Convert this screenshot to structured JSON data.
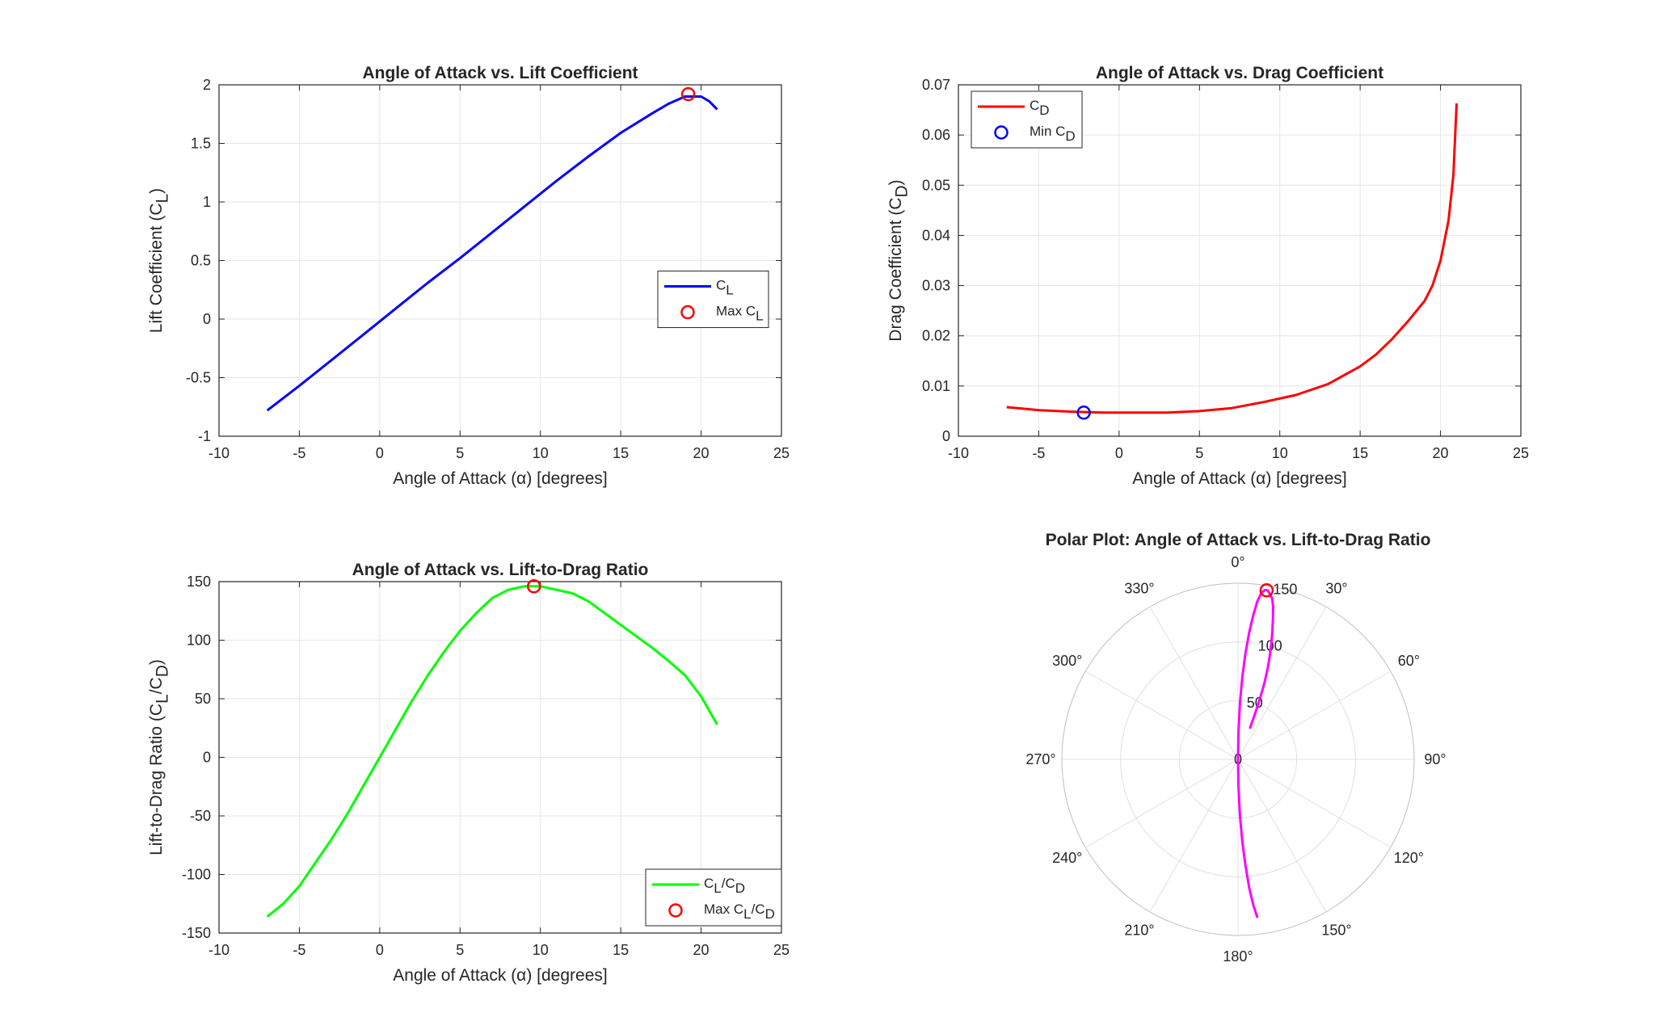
{
  "chart_data": [
    {
      "id": "cl",
      "type": "line",
      "title": "Angle of Attack vs. Lift Coefficient",
      "xlabel": "Angle of Attack (α) [degrees]",
      "ylabel": {
        "base": "Lift Coefficient (C",
        "sub": "L",
        "tail": ")"
      },
      "xlim": [
        -10,
        25
      ],
      "ylim": [
        -1,
        2
      ],
      "xticks": [
        "-10",
        "-5",
        "0",
        "5",
        "10",
        "15",
        "20",
        "25"
      ],
      "yticks": [
        "-1",
        "-0.5",
        "0",
        "0.5",
        "1",
        "1.5",
        "2"
      ],
      "grid": true,
      "legend_position": "center-right",
      "series": [
        {
          "name": {
            "base": "C",
            "sub": "L",
            "tail": ""
          },
          "color": "#0000ff",
          "x": [
            -7,
            -5,
            -3,
            -1,
            1,
            3,
            5,
            7,
            9,
            11,
            13,
            15,
            17,
            18,
            19,
            20,
            20.5,
            21
          ],
          "y": [
            -0.78,
            -0.57,
            -0.35,
            -0.13,
            0.09,
            0.31,
            0.52,
            0.74,
            0.96,
            1.18,
            1.39,
            1.59,
            1.76,
            1.84,
            1.9,
            1.9,
            1.86,
            1.79
          ]
        }
      ],
      "markers": [
        {
          "name": {
            "base": "Max C",
            "sub": "L",
            "tail": ""
          },
          "color": "#ff0000",
          "x": 19.2,
          "y": 1.92
        }
      ]
    },
    {
      "id": "cd",
      "type": "line",
      "title": "Angle of Attack vs. Drag Coefficient",
      "xlabel": "Angle of Attack (α) [degrees]",
      "ylabel": {
        "base": "Drag Coefficient (C",
        "sub": "D",
        "tail": ")"
      },
      "xlim": [
        -10,
        25
      ],
      "ylim": [
        0,
        0.07
      ],
      "xticks": [
        "-10",
        "-5",
        "0",
        "5",
        "10",
        "15",
        "20",
        "25"
      ],
      "yticks": [
        "0",
        "0.01",
        "0.02",
        "0.03",
        "0.04",
        "0.05",
        "0.06",
        "0.07"
      ],
      "grid": true,
      "legend_position": "top-left",
      "series": [
        {
          "name": {
            "base": "C",
            "sub": "D",
            "tail": ""
          },
          "color": "#ff0000",
          "x": [
            -7,
            -5,
            -3,
            -1,
            1,
            2,
            3,
            5,
            7,
            9,
            11,
            13,
            15,
            16,
            17,
            18,
            19,
            19.5,
            20,
            20.5,
            20.8,
            21
          ],
          "y": [
            0.0058,
            0.0052,
            0.0049,
            0.0047,
            0.0047,
            0.0047,
            0.0047,
            0.005,
            0.0056,
            0.0068,
            0.0082,
            0.0104,
            0.0139,
            0.0163,
            0.0194,
            0.023,
            0.0269,
            0.03,
            0.035,
            0.043,
            0.052,
            0.0663
          ]
        }
      ],
      "markers": [
        {
          "name": {
            "base": "Min C",
            "sub": "D",
            "tail": ""
          },
          "color": "#0000ff",
          "x": -2.2,
          "y": 0.0047
        }
      ]
    },
    {
      "id": "ld",
      "type": "line",
      "title": "Angle of Attack vs. Lift-to-Drag Ratio",
      "xlabel": "Angle of Attack (α) [degrees]",
      "ylabel": {
        "base": "Lift-to-Drag Ratio (C",
        "sub": "L",
        "mid": "/C",
        "sub2": "D",
        "tail": ")"
      },
      "xlim": [
        -10,
        25
      ],
      "ylim": [
        -150,
        150
      ],
      "xticks": [
        "-10",
        "-5",
        "0",
        "5",
        "10",
        "15",
        "20",
        "25"
      ],
      "yticks": [
        "-150",
        "-100",
        "-50",
        "0",
        "50",
        "100",
        "150"
      ],
      "grid": true,
      "legend_position": "bottom-right",
      "series": [
        {
          "name": {
            "base": "C",
            "sub": "L",
            "mid": "/C",
            "sub2": "D",
            "tail": ""
          },
          "color": "#00ff00",
          "x": [
            -7,
            -6,
            -5,
            -4,
            -3,
            -2,
            -1,
            0,
            1,
            2,
            3,
            4,
            5,
            6,
            7,
            8,
            9,
            10,
            11,
            12,
            13,
            14,
            15,
            16,
            17,
            18,
            19,
            19.5,
            20,
            20.5,
            21
          ],
          "y": [
            -136,
            -125,
            -110,
            -90,
            -70,
            -48,
            -24,
            0,
            24,
            48,
            70,
            90,
            108,
            123,
            136,
            143,
            146,
            146,
            143,
            140,
            133,
            123,
            113,
            103,
            93,
            82,
            70,
            61,
            52,
            40,
            28
          ]
        }
      ],
      "markers": [
        {
          "name": {
            "base": "Max C",
            "sub": "L",
            "mid": "/C",
            "sub2": "D",
            "tail": ""
          },
          "color": "#ff0000",
          "x": 9.6,
          "y": 146
        }
      ]
    },
    {
      "id": "polar",
      "type": "polar",
      "title": "Polar Plot: Angle of Attack vs. Lift-to-Drag Ratio",
      "theta_ticks": [
        "0°",
        "30°",
        "60°",
        "90°",
        "120°",
        "150°",
        "180°",
        "210°",
        "240°",
        "270°",
        "300°",
        "330°"
      ],
      "r_ticks": [
        "0",
        "50",
        "100",
        "150"
      ],
      "rlim": [
        0,
        150
      ],
      "theta_zero": "top",
      "theta_direction": "clockwise",
      "series": [
        {
          "color": "#ff00ff",
          "theta_deg": [
            -7,
            -6,
            -5,
            -4,
            -3,
            -2,
            -1,
            0,
            1,
            2,
            3,
            4,
            5,
            6,
            7,
            8,
            9,
            10,
            11,
            12,
            13,
            14,
            15,
            16,
            17,
            18,
            19,
            19.5,
            20,
            20.5,
            21
          ],
          "r": [
            -136,
            -125,
            -110,
            -90,
            -70,
            -48,
            -24,
            0,
            24,
            48,
            70,
            90,
            108,
            123,
            136,
            143,
            146,
            146,
            143,
            140,
            133,
            123,
            113,
            103,
            93,
            82,
            70,
            61,
            52,
            40,
            28
          ]
        }
      ],
      "markers": [
        {
          "color": "#ff0000",
          "theta_deg": 9.6,
          "r": 146
        }
      ]
    }
  ]
}
